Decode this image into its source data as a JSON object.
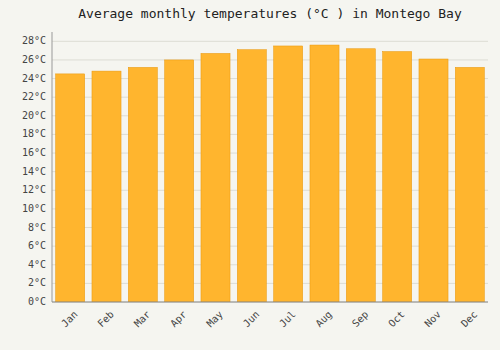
{
  "chart_data": {
    "type": "bar",
    "title": "Average monthly temperatures (°C ) in Montego Bay",
    "categories": [
      "Jan",
      "Feb",
      "Mar",
      "Apr",
      "May",
      "Jun",
      "Jul",
      "Aug",
      "Sep",
      "Oct",
      "Nov",
      "Dec"
    ],
    "values": [
      24.5,
      24.8,
      25.2,
      26.0,
      26.7,
      27.1,
      27.5,
      27.6,
      27.2,
      26.9,
      26.1,
      25.2
    ],
    "color": "#FFB52E",
    "ylim": [
      0,
      29
    ],
    "yticks": [
      {
        "value": 0,
        "label": "0°C"
      },
      {
        "value": 2,
        "label": "2°C"
      },
      {
        "value": 4,
        "label": "4°C"
      },
      {
        "value": 6,
        "label": "6°C"
      },
      {
        "value": 8,
        "label": "8°C"
      },
      {
        "value": 10,
        "label": "10°C"
      },
      {
        "value": 12,
        "label": "12°C"
      },
      {
        "value": 14,
        "label": "14°C"
      },
      {
        "value": 16,
        "label": "16°C"
      },
      {
        "value": 18,
        "label": "18°C"
      },
      {
        "value": 20,
        "label": "20°C"
      },
      {
        "value": 22,
        "label": "22°C"
      },
      {
        "value": 24,
        "label": "24°C"
      },
      {
        "value": 26,
        "label": "26°C"
      },
      {
        "value": 28,
        "label": "28°C"
      }
    ],
    "grid": true
  }
}
